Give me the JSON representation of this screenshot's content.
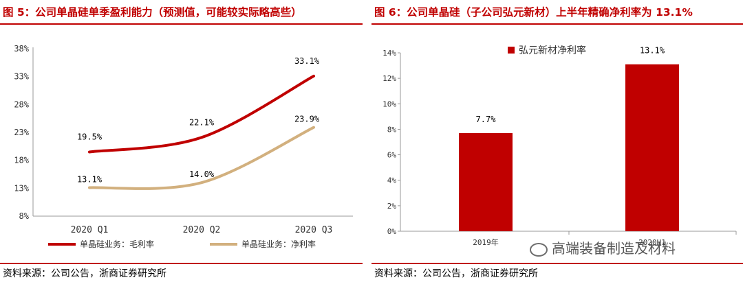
{
  "left": {
    "title": "图 5：公司单晶硅单季盈利能力（预测值，可能较实际略高些）",
    "source": "资料来源：公司公告，浙商证券研究所"
  },
  "right": {
    "title": "图 6：公司单晶硅（子公司弘元新材）上半年精确净利率为 13.1%",
    "source": "资料来源：公司公告，浙商证券研究所"
  },
  "watermark": "高端装备制造及材料",
  "colors": {
    "red": "#c00000",
    "tan": "#d2b07e",
    "title": "#c00000"
  },
  "chart_data": [
    {
      "type": "line",
      "categories": [
        "2020 Q1",
        "2020 Q2",
        "2020 Q3"
      ],
      "y_ticks": [
        "8%",
        "13%",
        "18%",
        "23%",
        "28%",
        "33%",
        "38%"
      ],
      "ylim": [
        8,
        38
      ],
      "series": [
        {
          "name": "单晶硅业务：毛利率",
          "values": [
            19.5,
            22.1,
            33.1
          ],
          "labels": [
            "19.5%",
            "22.1%",
            "33.1%"
          ]
        },
        {
          "name": "单晶硅业务：净利率",
          "values": [
            13.1,
            14.0,
            23.9
          ],
          "labels": [
            "13.1%",
            "14.0%",
            "23.9%"
          ]
        }
      ],
      "legend_position": "bottom"
    },
    {
      "type": "bar",
      "categories": [
        "2019年",
        "2020H1"
      ],
      "y_ticks": [
        "0%",
        "2%",
        "4%",
        "6%",
        "8%",
        "10%",
        "12%",
        "14%"
      ],
      "ylim": [
        0,
        14
      ],
      "series": [
        {
          "name": "弘元新材净利率",
          "values": [
            7.7,
            13.1
          ],
          "labels": [
            "7.7%",
            "13.1%"
          ]
        }
      ],
      "legend_position": "top"
    }
  ]
}
